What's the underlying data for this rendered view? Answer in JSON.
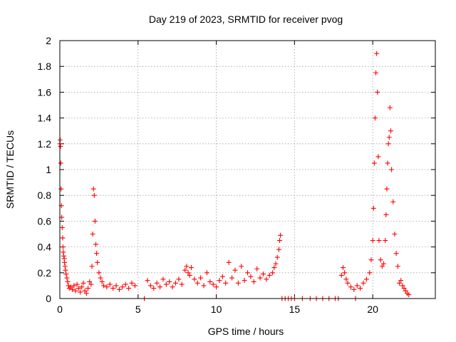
{
  "chart_data": {
    "type": "scatter",
    "title": "Day 219 of 2023, SRMTID for receiver pvog",
    "xlabel": "GPS time / hours",
    "ylabel": "SRMTID / TECUs",
    "xlim": [
      0,
      24
    ],
    "ylim": [
      0,
      2
    ],
    "grid": true,
    "marker": "+",
    "x_ticks": [
      0,
      5,
      10,
      15,
      20
    ],
    "x_tick_labels": [
      "0",
      "5",
      "10",
      "15",
      "20"
    ],
    "y_ticks": [
      0,
      0.2,
      0.4,
      0.6,
      0.8,
      1,
      1.2,
      1.4,
      1.6,
      1.8,
      2
    ],
    "y_tick_labels": [
      "0",
      "0.2",
      "0.4",
      "0.6",
      "0.8",
      "1",
      "1.2",
      "1.4",
      "1.6",
      "1.8",
      "2"
    ],
    "colors": {
      "series": "#ff0000",
      "axes": "#000000",
      "grid": "#a0a0a0"
    },
    "series": [
      {
        "name": "pvog",
        "x": [
          0.0,
          0.02,
          0.04,
          0.06,
          0.08,
          0.1,
          0.12,
          0.15,
          0.18,
          0.2,
          0.22,
          0.25,
          0.28,
          0.3,
          0.33,
          0.36,
          0.4,
          0.45,
          0.5,
          0.55,
          0.6,
          0.7,
          0.8,
          0.9,
          1.0,
          1.1,
          1.2,
          1.3,
          1.4,
          1.5,
          1.6,
          1.7,
          1.8,
          1.9,
          2.0,
          2.05,
          2.1,
          2.15,
          2.2,
          2.25,
          2.3,
          2.35,
          2.4,
          2.5,
          2.6,
          2.7,
          2.8,
          3.0,
          3.2,
          3.4,
          3.6,
          3.8,
          4.0,
          4.2,
          4.4,
          4.6,
          4.8,
          5.4,
          5.6,
          5.8,
          6.0,
          6.2,
          6.4,
          6.6,
          6.8,
          7.0,
          7.2,
          7.4,
          7.6,
          7.8,
          8.0,
          8.1,
          8.2,
          8.3,
          8.4,
          8.6,
          8.8,
          9.0,
          9.2,
          9.4,
          9.6,
          9.8,
          10.0,
          10.2,
          10.4,
          10.6,
          10.8,
          11.0,
          11.2,
          11.4,
          11.6,
          11.8,
          12.0,
          12.2,
          12.4,
          12.6,
          12.8,
          13.0,
          13.2,
          13.4,
          13.6,
          13.7,
          13.8,
          13.9,
          14.0,
          14.05,
          14.1,
          14.2,
          14.4,
          14.6,
          14.8,
          15.0,
          15.5,
          16.0,
          16.4,
          16.8,
          17.2,
          17.6,
          17.8,
          18.0,
          18.1,
          18.2,
          18.3,
          18.4,
          18.6,
          18.8,
          18.9,
          19.0,
          19.2,
          19.4,
          19.6,
          19.8,
          19.9,
          20.0,
          20.05,
          20.1,
          20.15,
          20.2,
          20.25,
          20.3,
          20.35,
          20.4,
          20.5,
          20.6,
          20.7,
          20.8,
          20.85,
          20.9,
          20.95,
          21.0,
          21.05,
          21.1,
          21.15,
          21.2,
          21.3,
          21.4,
          21.5,
          21.6,
          21.7,
          21.8,
          21.9,
          22.0,
          22.1,
          22.2,
          22.3
        ],
        "y": [
          1.2,
          1.23,
          1.18,
          1.05,
          0.85,
          0.72,
          0.63,
          0.55,
          0.47,
          0.4,
          0.36,
          0.33,
          0.31,
          0.28,
          0.25,
          0.22,
          0.19,
          0.16,
          0.13,
          0.1,
          0.08,
          0.09,
          0.07,
          0.1,
          0.06,
          0.11,
          0.08,
          0.05,
          0.09,
          0.12,
          0.06,
          0.04,
          0.08,
          0.13,
          0.11,
          0.25,
          0.5,
          0.85,
          0.8,
          0.6,
          0.42,
          0.35,
          0.28,
          0.2,
          0.16,
          0.13,
          0.1,
          0.09,
          0.11,
          0.08,
          0.1,
          0.07,
          0.09,
          0.11,
          0.08,
          0.12,
          0.1,
          0.0,
          0.14,
          0.1,
          0.08,
          0.12,
          0.09,
          0.15,
          0.11,
          0.13,
          0.09,
          0.12,
          0.15,
          0.11,
          0.22,
          0.25,
          0.2,
          0.18,
          0.24,
          0.15,
          0.12,
          0.16,
          0.1,
          0.2,
          0.13,
          0.11,
          0.09,
          0.14,
          0.17,
          0.12,
          0.28,
          0.16,
          0.22,
          0.12,
          0.25,
          0.14,
          0.2,
          0.17,
          0.13,
          0.23,
          0.16,
          0.19,
          0.15,
          0.18,
          0.2,
          0.24,
          0.27,
          0.32,
          0.38,
          0.45,
          0.49,
          0.0,
          0.0,
          0.0,
          0.0,
          0.0,
          0.0,
          0.0,
          0.0,
          0.0,
          0.0,
          0.0,
          0.0,
          0.18,
          0.24,
          0.2,
          0.15,
          0.12,
          0.09,
          0.07,
          0.0,
          0.1,
          0.08,
          0.12,
          0.15,
          0.2,
          0.3,
          0.45,
          0.7,
          1.05,
          1.4,
          1.75,
          1.9,
          1.6,
          1.1,
          0.45,
          0.3,
          0.25,
          0.27,
          0.45,
          0.65,
          0.85,
          1.05,
          1.2,
          1.25,
          1.48,
          1.3,
          1.0,
          0.75,
          0.5,
          0.35,
          0.25,
          0.12,
          0.14,
          0.1,
          0.08,
          0.06,
          0.04,
          0.03
        ]
      }
    ]
  }
}
